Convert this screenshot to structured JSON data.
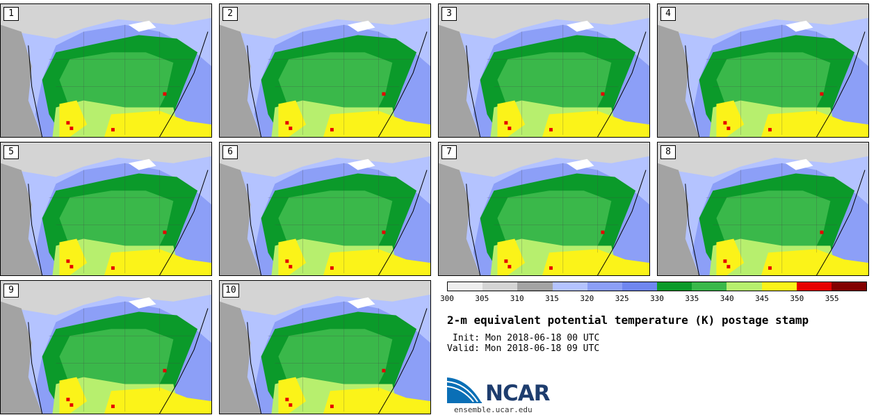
{
  "panels": [
    {
      "label": "1"
    },
    {
      "label": "2"
    },
    {
      "label": "3"
    },
    {
      "label": "4"
    },
    {
      "label": "5"
    },
    {
      "label": "6"
    },
    {
      "label": "7"
    },
    {
      "label": "8"
    },
    {
      "label": "9"
    },
    {
      "label": "10"
    }
  ],
  "colorbar": {
    "colors": [
      "#eeeeee",
      "#d4d4d4",
      "#a3a3a3",
      "#b4c3ff",
      "#8c9ff7",
      "#6f86f0",
      "#0b9a2a",
      "#3ab84a",
      "#b7ef6e",
      "#fbf319",
      "#e60000",
      "#820000"
    ],
    "ticks": [
      "300",
      "305",
      "310",
      "315",
      "320",
      "325",
      "330",
      "335",
      "340",
      "345",
      "350",
      "355"
    ]
  },
  "title": "2-m equivalent potential temperature (K) postage stamp",
  "init": "Init: Mon 2018-06-18 00 UTC",
  "valid": "Valid: Mon 2018-06-18 09 UTC",
  "logo": {
    "text": "NCAR",
    "site": "ensemble.ucar.edu"
  }
}
